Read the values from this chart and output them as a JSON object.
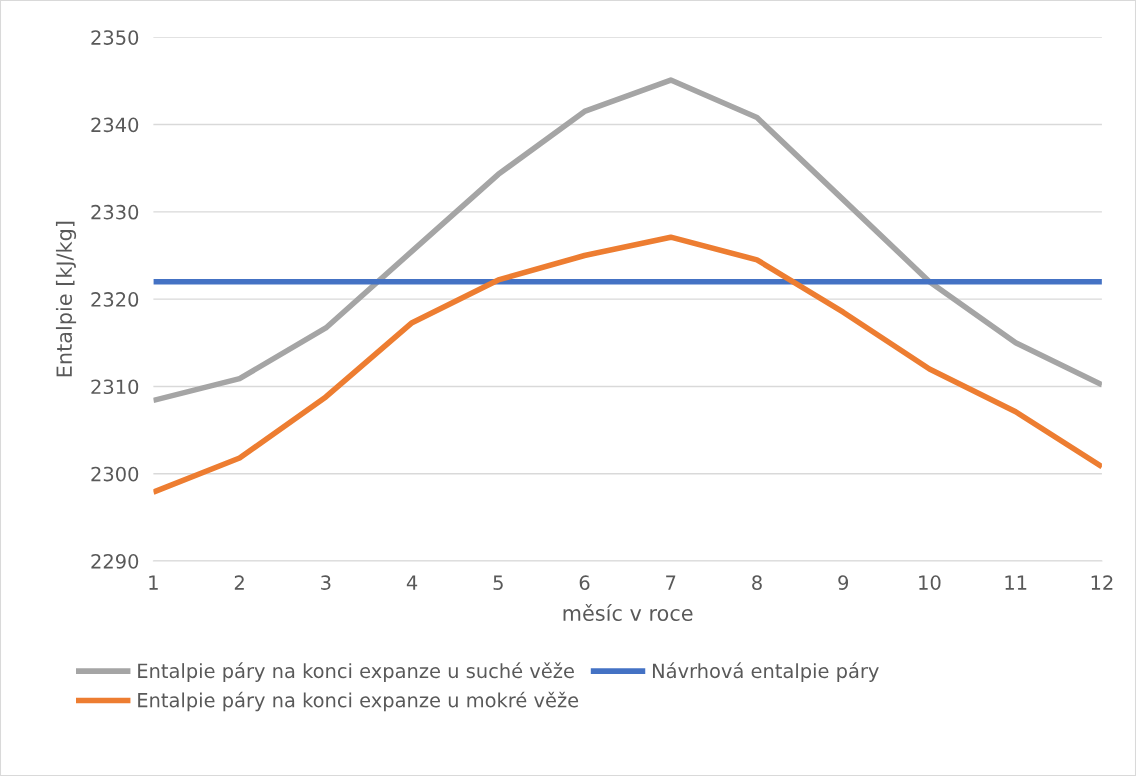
{
  "chart_data": {
    "type": "line",
    "xlabel": "měsíc v roce",
    "ylabel": "Entalpie [kJ/kg]",
    "x": [
      1,
      2,
      3,
      4,
      5,
      6,
      7,
      8,
      9,
      10,
      11,
      12
    ],
    "series": [
      {
        "name": "Entalpie páry na konci expanze u suché věže",
        "color": "#a5a5a5",
        "values": [
          2308.4,
          2310.9,
          2316.7,
          2325.5,
          2334.3,
          2341.5,
          2345.1,
          2340.8,
          2331.4,
          2322.0,
          2315.0,
          2310.2
        ]
      },
      {
        "name": "Návrhová entalpie páry",
        "color": "#4472c4",
        "values": [
          2322,
          2322,
          2322,
          2322,
          2322,
          2322,
          2322,
          2322,
          2322,
          2322,
          2322,
          2322
        ]
      },
      {
        "name": "Entalpie páry na konci expanze u mokré věže",
        "color": "#ed7d31",
        "values": [
          2297.9,
          2301.8,
          2308.8,
          2317.3,
          2322.2,
          2325.0,
          2327.1,
          2324.5,
          2318.5,
          2312.0,
          2307.1,
          2300.8
        ]
      }
    ],
    "xlim": [
      1,
      12
    ],
    "xticks": [
      1,
      2,
      3,
      4,
      5,
      6,
      7,
      8,
      9,
      10,
      11,
      12
    ],
    "ylim": [
      2290,
      2350
    ],
    "yticks": [
      2290,
      2300,
      2310,
      2320,
      2330,
      2340,
      2350
    ],
    "grid": "y",
    "legend": "bottom",
    "marker": "none",
    "line_style": "solid"
  }
}
